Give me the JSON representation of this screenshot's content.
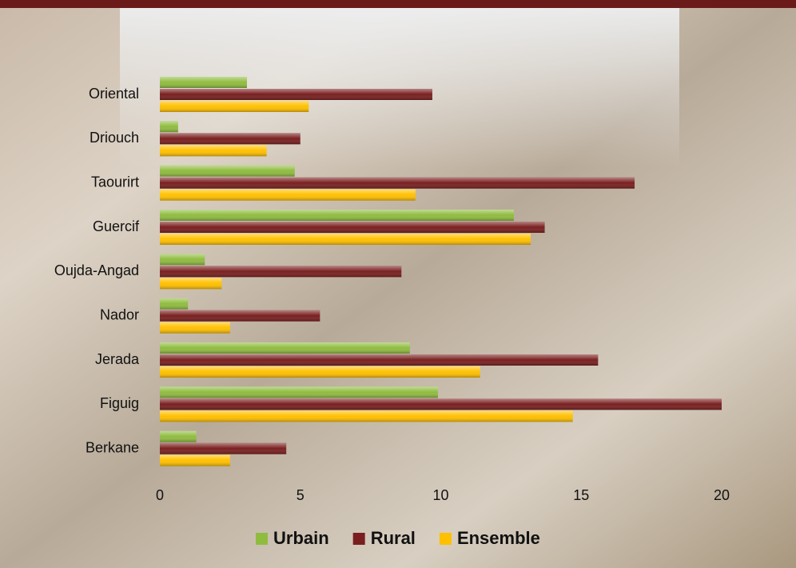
{
  "chart_data": {
    "type": "barh",
    "categories": [
      "Oriental",
      "Driouch",
      "Taourirt",
      "Guercif",
      "Oujda-Angad",
      "Nador",
      "Jerada",
      "Figuig",
      "Berkane"
    ],
    "series": [
      {
        "name": "Urbain",
        "color": "#8fbc3f",
        "values": [
          3.1,
          0.65,
          4.8,
          12.6,
          1.6,
          1.0,
          8.9,
          9.9,
          1.3
        ]
      },
      {
        "name": "Rural",
        "color": "#7a1f1f",
        "values": [
          9.7,
          5.0,
          16.9,
          13.7,
          8.6,
          5.7,
          15.6,
          20.0,
          4.5
        ]
      },
      {
        "name": "Ensemble",
        "color": "#ffc000",
        "values": [
          5.3,
          3.8,
          9.1,
          13.2,
          2.2,
          2.5,
          11.4,
          14.7,
          2.5
        ]
      }
    ],
    "xlim": [
      0,
      20
    ],
    "xticks": [
      0,
      5,
      10,
      15,
      20
    ],
    "grid": false,
    "legend": "bottom"
  }
}
